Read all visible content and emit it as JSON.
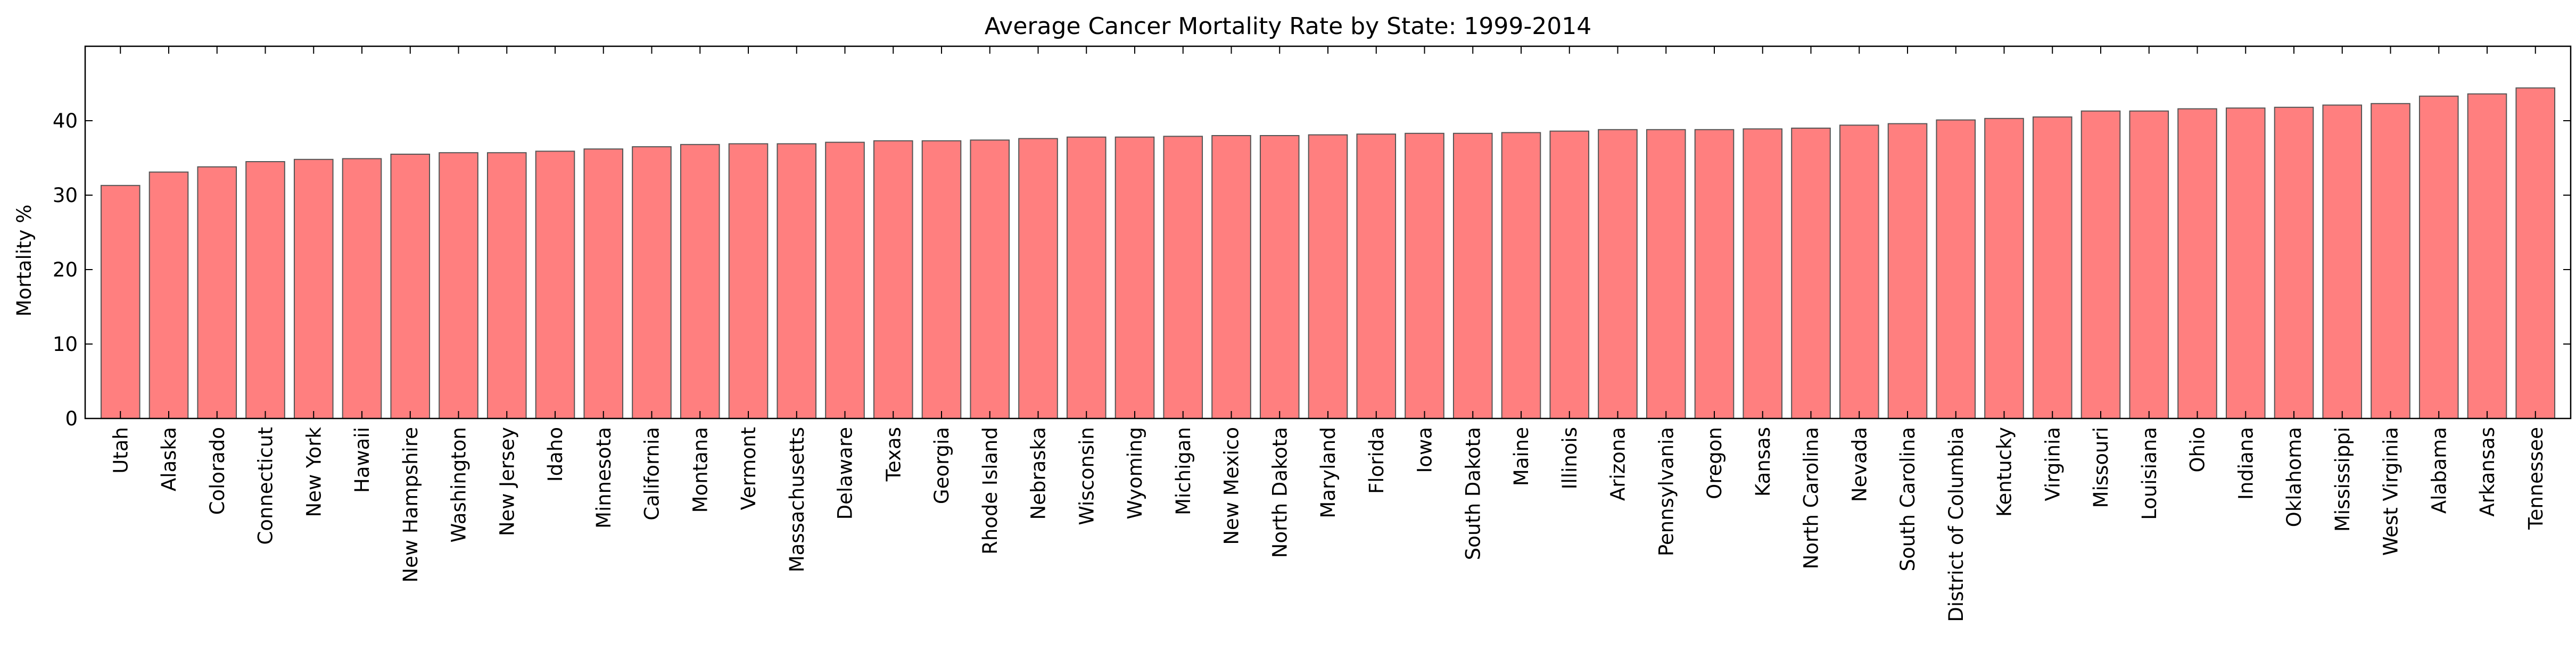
{
  "chart_data": {
    "type": "bar",
    "title": "Average Cancer Mortality Rate by State: 1999-2014",
    "xlabel": "",
    "ylabel": "Mortality %",
    "ylim": [
      0,
      50
    ],
    "yticks": [
      0,
      10,
      20,
      30,
      40
    ],
    "grid": false,
    "legend": "none",
    "bar_color": "#ff7f7f",
    "bar_edge_color": "#555555",
    "categories": [
      "Utah",
      "Alaska",
      "Colorado",
      "Connecticut",
      "New York",
      "Hawaii",
      "New Hampshire",
      "Washington",
      "New Jersey",
      "Idaho",
      "Minnesota",
      "California",
      "Montana",
      "Vermont",
      "Massachusetts",
      "Delaware",
      "Texas",
      "Georgia",
      "Rhode Island",
      "Nebraska",
      "Wisconsin",
      "Wyoming",
      "Michigan",
      "New Mexico",
      "North Dakota",
      "Maryland",
      "Florida",
      "Iowa",
      "South Dakota",
      "Maine",
      "Illinois",
      "Arizona",
      "Pennsylvania",
      "Oregon",
      "Kansas",
      "North Carolina",
      "Nevada",
      "South Carolina",
      "District of Columbia",
      "Kentucky",
      "Virginia",
      "Missouri",
      "Louisiana",
      "Ohio",
      "Indiana",
      "Oklahoma",
      "Mississippi",
      "West Virginia",
      "Alabama",
      "Arkansas",
      "Tennessee"
    ],
    "values": [
      31.3,
      33.1,
      33.8,
      34.5,
      34.8,
      34.9,
      35.5,
      35.7,
      35.7,
      35.9,
      36.2,
      36.5,
      36.8,
      36.9,
      36.9,
      37.1,
      37.3,
      37.3,
      37.4,
      37.6,
      37.8,
      37.8,
      37.9,
      38.0,
      38.0,
      38.1,
      38.2,
      38.3,
      38.3,
      38.4,
      38.6,
      38.8,
      38.8,
      38.8,
      38.9,
      39.0,
      39.4,
      39.6,
      40.1,
      40.3,
      40.5,
      41.3,
      41.3,
      41.6,
      41.7,
      41.8,
      42.1,
      42.3,
      43.3,
      43.6,
      44.4
    ]
  }
}
